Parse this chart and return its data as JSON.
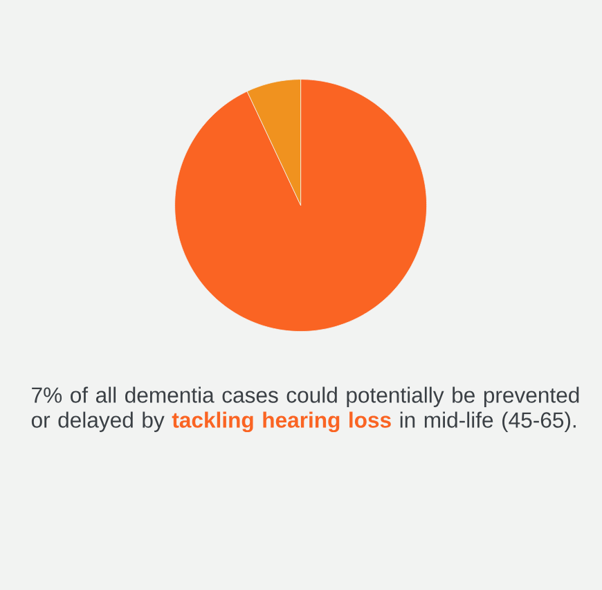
{
  "chart_data": {
    "type": "pie",
    "categories": [
      null,
      null
    ],
    "values": [
      93,
      7
    ],
    "colors": [
      "#fa6423",
      "#f0921f"
    ],
    "annotations": [
      "7% of all dementia cases could potentially be prevented or delayed by **tackling hearing loss** in mid-life (45-65)."
    ]
  }
}
